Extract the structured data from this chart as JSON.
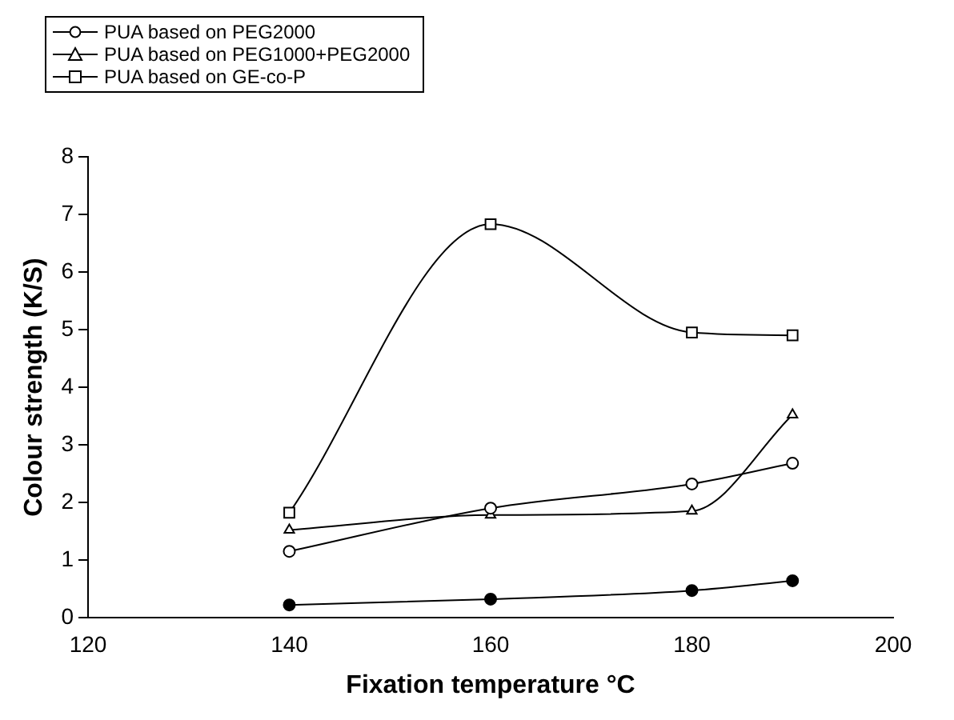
{
  "chart_data": {
    "type": "line",
    "xlabel": "Fixation temperature °C",
    "ylabel": "Colour strength (K/S)",
    "x": [
      140,
      160,
      180,
      190
    ],
    "series": [
      {
        "color": "#000000",
        "marker": "circle",
        "values": [
          0.22,
          0.32,
          0.47,
          0.64
        ]
      },
      {
        "name": "PUA based on PEG2000",
        "color": "#000000",
        "marker": "circle",
        "values": [
          1.15,
          1.9,
          2.32,
          2.68
        ]
      },
      {
        "name": "PUA based on PEG1000+PEG2000",
        "color": "#000000",
        "marker": "triangle",
        "values": [
          1.52,
          1.78,
          1.85,
          3.52
        ]
      },
      {
        "name": "PUA based on GE-co-P",
        "color": "#000000",
        "marker": "square",
        "values": [
          1.82,
          6.83,
          4.95,
          4.9
        ]
      }
    ],
    "xlim": [
      120,
      200
    ],
    "xticks": [
      120,
      140,
      160,
      180,
      200
    ],
    "ylim": [
      0,
      8
    ],
    "yticks": [
      0,
      1,
      2,
      3,
      4,
      5,
      6,
      7,
      8
    ],
    "grid": false,
    "legend": "top left",
    "line_style": "solid"
  }
}
